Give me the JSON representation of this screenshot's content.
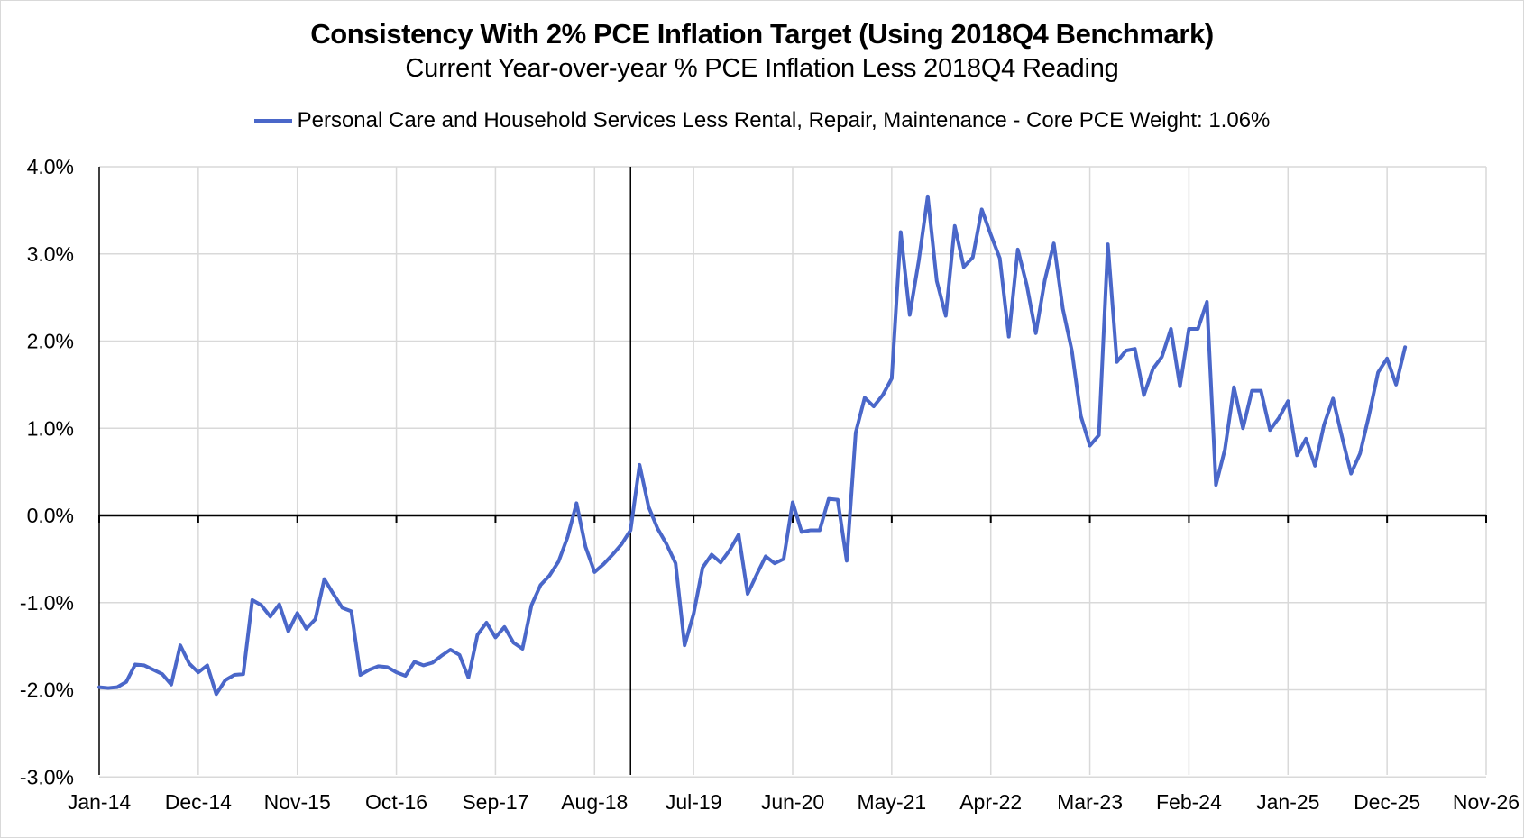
{
  "chart_data": {
    "type": "line",
    "title": "Consistency With 2% PCE Inflation Target (Using 2018Q4 Benchmark)",
    "subtitle": "Current Year-over-year % PCE Inflation Less 2018Q4 Reading",
    "legend_position": "top-center",
    "grid": true,
    "x_tick_labels": [
      "Jan-14",
      "Dec-14",
      "Nov-15",
      "Oct-16",
      "Sep-17",
      "Aug-18",
      "Jul-19",
      "Jun-20",
      "May-21",
      "Apr-22",
      "Mar-23",
      "Feb-24",
      "Jan-25",
      "Dec-25",
      "Nov-26"
    ],
    "y_tick_labels": [
      "4.0%",
      "3.0%",
      "2.0%",
      "1.0%",
      "0.0%",
      "-1.0%",
      "-2.0%",
      "-3.0%"
    ],
    "ylim": [
      -3.0,
      4.0
    ],
    "xlim": [
      "2014-01",
      "2026-11"
    ],
    "reference_line_x": "2018-12",
    "series": [
      {
        "name": "Personal Care and Household Services Less Rental, Repair, Maintenance  - Core PCE Weight: 1.06%",
        "color": "#4a67c9",
        "start": "2014-01",
        "frequency": "monthly",
        "values": [
          -1.97,
          -1.98,
          -1.97,
          -1.91,
          -1.71,
          -1.72,
          -1.77,
          -1.82,
          -1.94,
          -1.49,
          -1.7,
          -1.8,
          -1.72,
          -2.05,
          -1.89,
          -1.83,
          -1.82,
          -0.97,
          -1.03,
          -1.16,
          -1.02,
          -1.33,
          -1.12,
          -1.3,
          -1.19,
          -0.73,
          -0.9,
          -1.06,
          -1.1,
          -1.83,
          -1.77,
          -1.73,
          -1.74,
          -1.8,
          -1.84,
          -1.68,
          -1.72,
          -1.69,
          -1.61,
          -1.54,
          -1.6,
          -1.86,
          -1.37,
          -1.23,
          -1.4,
          -1.28,
          -1.46,
          -1.53,
          -1.03,
          -0.8,
          -0.69,
          -0.53,
          -0.25,
          0.14,
          -0.36,
          -0.65,
          -0.56,
          -0.45,
          -0.33,
          -0.17,
          0.58,
          0.1,
          -0.15,
          -0.33,
          -0.55,
          -1.49,
          -1.13,
          -0.6,
          -0.45,
          -0.54,
          -0.4,
          -0.22,
          -0.9,
          -0.68,
          -0.47,
          -0.55,
          -0.5,
          0.15,
          -0.19,
          -0.17,
          -0.17,
          0.19,
          0.18,
          -0.52,
          0.95,
          1.35,
          1.25,
          1.38,
          1.57,
          3.25,
          2.3,
          2.92,
          3.66,
          2.69,
          2.29,
          3.32,
          2.85,
          2.96,
          3.51,
          3.22,
          2.95,
          2.05,
          3.05,
          2.64,
          2.09,
          2.7,
          3.12,
          2.37,
          1.89,
          1.14,
          0.8,
          0.92,
          3.11,
          1.76,
          1.89,
          1.91,
          1.38,
          1.68,
          1.82,
          2.14,
          1.48,
          2.14,
          2.14,
          2.45,
          0.35,
          0.76,
          1.47,
          1.0,
          1.43,
          1.43,
          0.98,
          1.12,
          1.31,
          0.69,
          0.88,
          0.57,
          1.04,
          1.34,
          0.9,
          0.48,
          0.71,
          1.15,
          1.64,
          1.8,
          1.5,
          1.93
        ]
      }
    ]
  }
}
